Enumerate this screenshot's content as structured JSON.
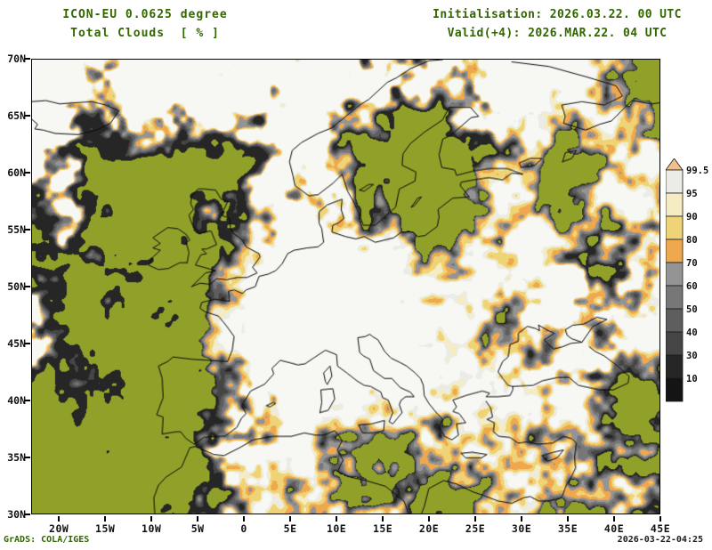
{
  "header": {
    "model_line": "ICON-EU 0.0625 degree",
    "field_line": "Total Clouds  [ % ]",
    "init_line": "Initialisation: 2026.03.22. 00 UTC",
    "valid_line": "Valid(+4): 2026.MAR.22. 04 UTC",
    "text_color": "#336600"
  },
  "footer": {
    "left": "GrADS: COLA/IGES",
    "left_color": "#336600",
    "right": "2026-03-22-04:25",
    "right_color": "#1a1a1a"
  },
  "map": {
    "axis_label_color": "#111111",
    "x_axis": {
      "ticks": [
        {
          "label": "20W",
          "value": -20
        },
        {
          "label": "15W",
          "value": -15
        },
        {
          "label": "10W",
          "value": -10
        },
        {
          "label": "5W",
          "value": -5
        },
        {
          "label": "0",
          "value": 0
        },
        {
          "label": "5E",
          "value": 5
        },
        {
          "label": "10E",
          "value": 10
        },
        {
          "label": "15E",
          "value": 15
        },
        {
          "label": "20E",
          "value": 20
        },
        {
          "label": "25E",
          "value": 25
        },
        {
          "label": "30E",
          "value": 30
        },
        {
          "label": "35E",
          "value": 35
        },
        {
          "label": "40E",
          "value": 40
        },
        {
          "label": "45E",
          "value": 45
        }
      ]
    },
    "y_axis": {
      "ticks": [
        {
          "label": "70N",
          "value": 70
        },
        {
          "label": "65N",
          "value": 65
        },
        {
          "label": "60N",
          "value": 60
        },
        {
          "label": "55N",
          "value": 55
        },
        {
          "label": "50N",
          "value": 50
        },
        {
          "label": "45N",
          "value": 45
        },
        {
          "label": "40N",
          "value": 40
        },
        {
          "label": "35N",
          "value": 35
        },
        {
          "label": "30N",
          "value": 30
        }
      ]
    }
  },
  "chart_data": {
    "type": "heatmap",
    "title": "Total Clouds  [ % ]",
    "model": "ICON-EU 0.0625 degree",
    "initialisation": "2026.03.22. 00 UTC",
    "valid": "2026.MAR.22. 04 UTC",
    "forecast_offset": "+4",
    "units": "%",
    "lon_ticks": [
      "20W",
      "15W",
      "10W",
      "5W",
      "0",
      "5E",
      "10E",
      "15E",
      "20E",
      "25E",
      "30E",
      "35E",
      "40E",
      "45E"
    ],
    "lat_ticks": [
      "70N",
      "65N",
      "60N",
      "55N",
      "50N",
      "45N",
      "40N",
      "35N",
      "30N"
    ],
    "levels": [
      10,
      30,
      40,
      50,
      60,
      70,
      80,
      90,
      95,
      99.5
    ],
    "bin_colors": [
      "#90a028",
      "#262626",
      "#454545",
      "#5e5e5e",
      "#777777",
      "#949494",
      "#f0a84e",
      "#eed476",
      "#f5ecc3",
      "#ebebe7",
      "#f7f7f4"
    ],
    "background_color": "#90a028",
    "colorbar": {
      "labels": [
        "99.5",
        "95",
        "90",
        "80",
        "70",
        "60",
        "50",
        "40",
        "30",
        "10"
      ],
      "segment_colors_top_to_bottom": [
        "#f2c18b",
        "#ebebe7",
        "#f5ecc3",
        "#eed476",
        "#f0a84e",
        "#949494",
        "#777777",
        "#5e5e5e",
        "#454545",
        "#262626",
        "#141414"
      ],
      "label_color": "#111111"
    },
    "legend_position": "right"
  }
}
